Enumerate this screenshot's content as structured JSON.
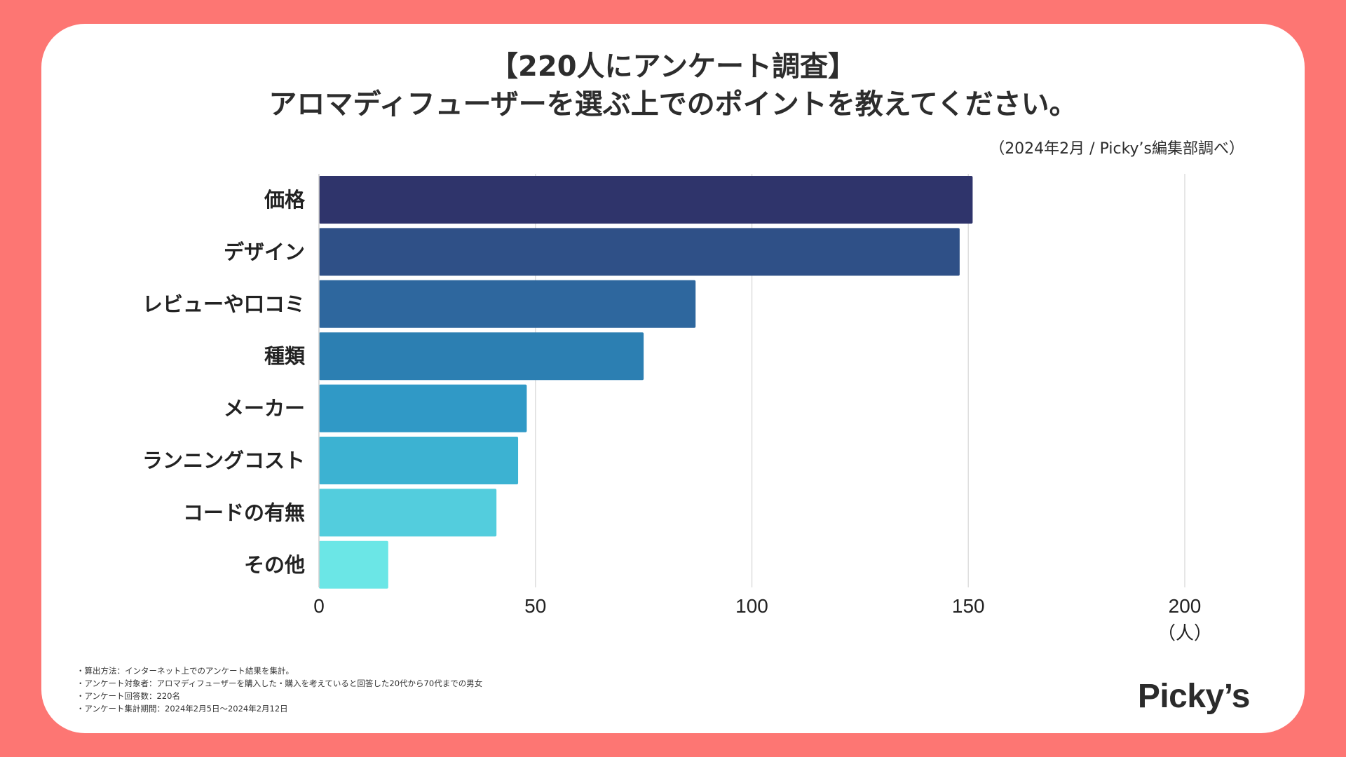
{
  "title": {
    "line1": "【220人にアンケート調査】",
    "line2": "アロマディフューザーを選ぶ上でのポイントを教えてください。"
  },
  "source": "（2024年2月 / Picky’s編集部調べ）",
  "chart_data": {
    "type": "bar",
    "orientation": "horizontal",
    "categories": [
      "価格",
      "デザイン",
      "レビューや口コミ",
      "種類",
      "メーカー",
      "ランニングコスト",
      "コードの有無",
      "その他"
    ],
    "values": [
      151,
      148,
      87,
      75,
      48,
      46,
      41,
      16
    ],
    "colors": [
      "#2f346b",
      "#2f5087",
      "#2e679e",
      "#2c7fb2",
      "#3099c6",
      "#3cb2d2",
      "#53cddd",
      "#6be6e6"
    ],
    "xlim": [
      0,
      200
    ],
    "xticks": [
      0,
      50,
      100,
      150,
      200
    ],
    "xlabel": "（人）",
    "grid": true,
    "title": "アロマディフューザーを選ぶ上でのポイントを教えてください。"
  },
  "notes": [
    "・算出方法：インターネット上でのアンケート結果を集計。",
    "・アンケート対象者：アロマディフューザーを購入した・購入を考えていると回答した20代から70代までの男女",
    "・アンケート回答数：220名",
    "・アンケート集計期間：2024年2月5日〜2024年2月12日"
  ],
  "logo": "Picky’s"
}
